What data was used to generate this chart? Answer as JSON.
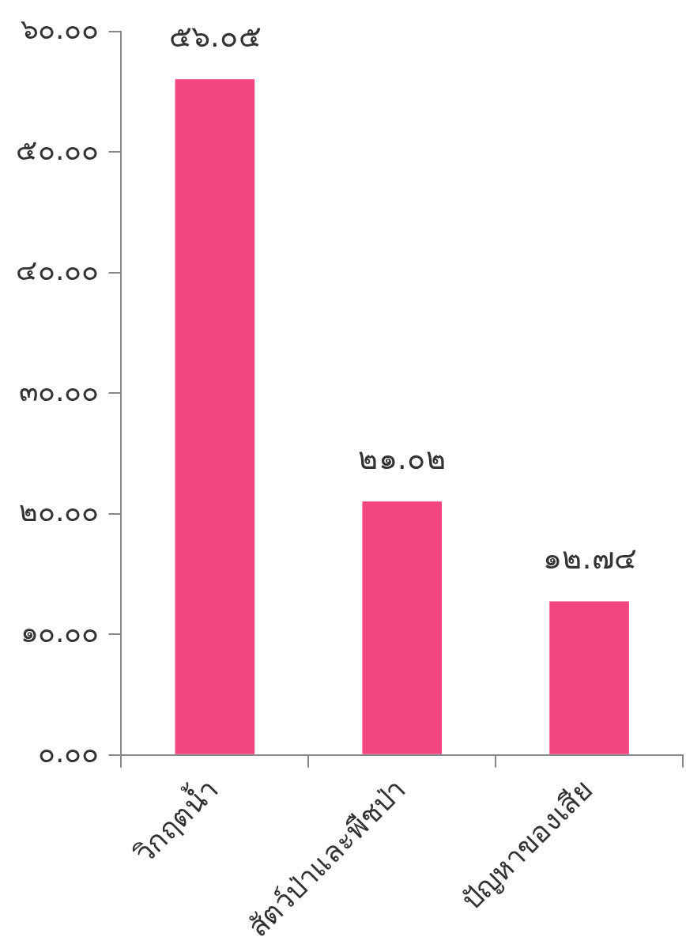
{
  "chart_data": {
    "type": "bar",
    "categories": [
      "วิกฤตน้ำ",
      "สัตว์ป่าและพืชป่า",
      "ปัญหาของเสีย"
    ],
    "values": [
      56.05,
      21.02,
      12.74
    ],
    "value_labels": [
      "๕๖.๐๕",
      "๒๑.๐๒",
      "๑๒.๗๔"
    ],
    "color": "#f3457f",
    "ylim": [
      0,
      60
    ],
    "yticks": [
      {
        "value": 0,
        "label": "๐.๐๐"
      },
      {
        "value": 10,
        "label": "๑๐.๐๐"
      },
      {
        "value": 20,
        "label": "๒๐.๐๐"
      },
      {
        "value": 30,
        "label": "๓๐.๐๐"
      },
      {
        "value": 40,
        "label": "๔๐.๐๐"
      },
      {
        "value": 50,
        "label": "๕๐.๐๐"
      },
      {
        "value": 60,
        "label": "๖๐.๐๐"
      }
    ],
    "grid": false,
    "legend": false
  }
}
